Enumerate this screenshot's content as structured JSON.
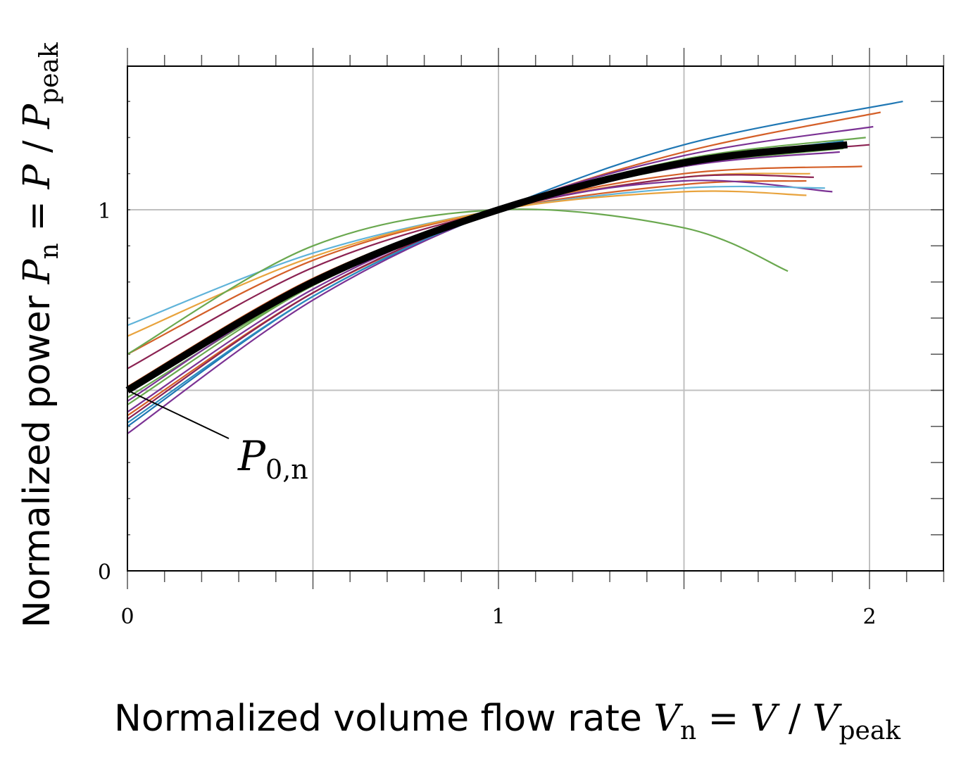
{
  "chart_data": {
    "type": "line",
    "title": "",
    "xlabel": {
      "prefix": "Normalized volume flow rate ",
      "sym": "V",
      "sub": "n",
      "eq": " = ",
      "num": "V",
      "slash": " / ",
      "den": "V",
      "den_sub": "peak"
    },
    "ylabel": {
      "prefix": "Normalized power ",
      "sym": "P",
      "sub": "n",
      "eq": " = ",
      "num": "P",
      "slash": " / ",
      "den": "P",
      "den_sub": "peak"
    },
    "xlim": [
      0,
      2.2
    ],
    "ylim": [
      0,
      1.4
    ],
    "x_ticks": [
      {
        "value": 0,
        "label": "0"
      },
      {
        "value": 1,
        "label": "1"
      },
      {
        "value": 2,
        "label": "2"
      }
    ],
    "y_ticks": [
      {
        "value": 0,
        "label": "0"
      },
      {
        "value": 1,
        "label": "1"
      }
    ],
    "grid": true,
    "annotation": {
      "text": "P",
      "sub": "0,n",
      "x": 0,
      "y": 0.5
    },
    "series": [
      {
        "color": "#1f77b4",
        "width": 2.2,
        "x": [
          0,
          0.5,
          1,
          1.5,
          2.09
        ],
        "y": [
          0.4,
          0.76,
          1.0,
          1.18,
          1.3
        ]
      },
      {
        "color": "#d45f28",
        "width": 2.2,
        "x": [
          0,
          0.5,
          1,
          1.5,
          2.03
        ],
        "y": [
          0.43,
          0.77,
          1.0,
          1.16,
          1.27
        ]
      },
      {
        "color": "#7b3294",
        "width": 2.2,
        "x": [
          0,
          0.5,
          1,
          1.5,
          2.01
        ],
        "y": [
          0.38,
          0.75,
          1.0,
          1.15,
          1.23
        ]
      },
      {
        "color": "#6aa84f",
        "width": 2.2,
        "x": [
          0,
          0.5,
          1,
          1.5,
          1.99
        ],
        "y": [
          0.48,
          0.79,
          1.0,
          1.14,
          1.2
        ]
      },
      {
        "color": "#2b8cbe",
        "width": 2.2,
        "x": [
          0,
          0.5,
          1,
          1.5,
          1.93
        ],
        "y": [
          0.41,
          0.76,
          1.0,
          1.13,
          1.19
        ]
      },
      {
        "color": "#8b2252",
        "width": 2.2,
        "x": [
          0,
          0.5,
          1,
          1.5,
          2.0
        ],
        "y": [
          0.42,
          0.77,
          1.0,
          1.13,
          1.18
        ]
      },
      {
        "color": "#6aa84f",
        "width": 2.2,
        "x": [
          0,
          0.5,
          1,
          1.5,
          1.93
        ],
        "y": [
          0.46,
          0.79,
          1.0,
          1.12,
          1.17
        ]
      },
      {
        "color": "#7b3294",
        "width": 2.2,
        "x": [
          0,
          0.5,
          1,
          1.5,
          1.92
        ],
        "y": [
          0.44,
          0.78,
          1.0,
          1.12,
          1.16
        ]
      },
      {
        "color": "#d45f28",
        "width": 2.2,
        "x": [
          0,
          0.5,
          1,
          1.5,
          1.98
        ],
        "y": [
          0.51,
          0.81,
          1.0,
          1.1,
          1.12
        ]
      },
      {
        "color": "#e8a33d",
        "width": 2.2,
        "x": [
          0,
          0.5,
          1,
          1.5,
          1.84
        ],
        "y": [
          0.5,
          0.8,
          1.0,
          1.09,
          1.1
        ]
      },
      {
        "color": "#8b2252",
        "width": 2.2,
        "x": [
          0,
          0.5,
          1,
          1.5,
          1.85
        ],
        "y": [
          0.56,
          0.84,
          1.0,
          1.09,
          1.09
        ]
      },
      {
        "color": "#d45f28",
        "width": 2.2,
        "x": [
          0,
          0.5,
          1,
          1.5,
          1.83
        ],
        "y": [
          0.6,
          0.86,
          1.0,
          1.07,
          1.08
        ]
      },
      {
        "color": "#7b3294",
        "width": 2.2,
        "x": [
          0,
          0.5,
          1,
          1.5,
          1.9
        ],
        "y": [
          0.47,
          0.8,
          1.0,
          1.08,
          1.05
        ]
      },
      {
        "color": "#5fb3d9",
        "width": 2.2,
        "x": [
          0,
          0.5,
          1,
          1.5,
          1.88
        ],
        "y": [
          0.68,
          0.88,
          1.0,
          1.06,
          1.06
        ]
      },
      {
        "color": "#e8a33d",
        "width": 2.2,
        "x": [
          0,
          0.5,
          1,
          1.5,
          1.83
        ],
        "y": [
          0.65,
          0.87,
          1.0,
          1.05,
          1.04
        ]
      },
      {
        "color": "#6aa84f",
        "width": 2.2,
        "x": [
          0,
          0.5,
          1,
          1.5,
          1.78
        ],
        "y": [
          0.6,
          0.9,
          1.0,
          0.95,
          0.83
        ]
      },
      {
        "color": "#000000",
        "width": 10,
        "x": [
          0,
          0.5,
          1,
          1.5,
          1.94
        ],
        "y": [
          0.5,
          0.8,
          1.0,
          1.13,
          1.18
        ]
      }
    ]
  }
}
